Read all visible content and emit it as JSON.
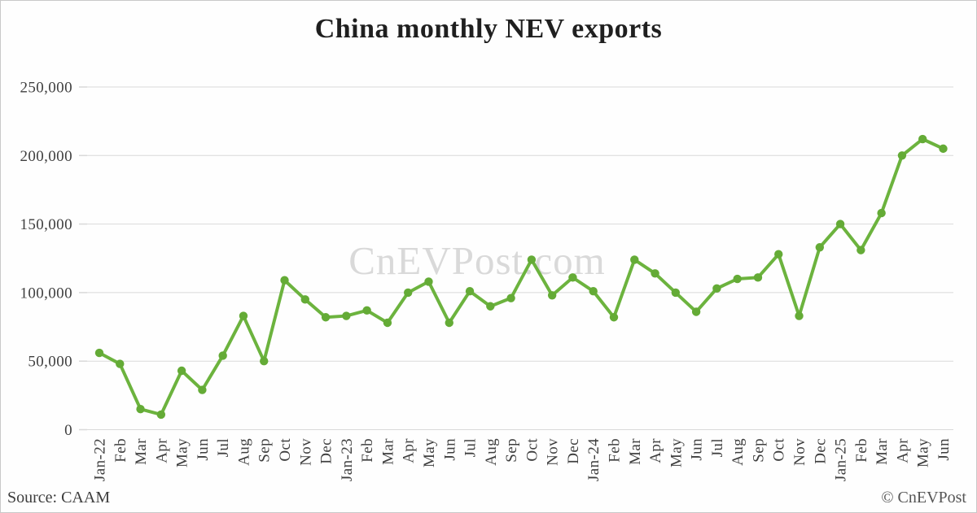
{
  "title": "China monthly NEV exports",
  "watermark": "CnEVPost.com",
  "footer": {
    "source": "Source: CAAM",
    "copyright": "© CnEVPost"
  },
  "colors": {
    "line": "#6cb33e",
    "marker": "#64ab36",
    "grid": "#d9d9d9",
    "axis_text": "#3f3f3f",
    "title_text": "#1f1f1f",
    "watermark_text": "#d9d9d9"
  },
  "chart_data": {
    "type": "line",
    "title": "China monthly NEV exports",
    "series_name": "China monthly NEV exports",
    "categories": [
      "Jan-22",
      "Feb",
      "Mar",
      "Apr",
      "May",
      "Jun",
      "Jul",
      "Aug",
      "Sep",
      "Oct",
      "Nov",
      "Dec",
      "Jan-23",
      "Feb",
      "Mar",
      "Apr",
      "May",
      "Jun",
      "Jul",
      "Aug",
      "Sep",
      "Oct",
      "Nov",
      "Dec",
      "Jan-24",
      "Feb",
      "Mar",
      "Apr",
      "May",
      "Jun",
      "Jul",
      "Aug",
      "Sep",
      "Oct",
      "Nov",
      "Dec",
      "Jan-25",
      "Feb",
      "Mar",
      "Apr",
      "May",
      "Jun"
    ],
    "values": [
      56000,
      48000,
      15000,
      11000,
      43000,
      29000,
      54000,
      83000,
      50000,
      109000,
      95000,
      82000,
      83000,
      87000,
      78000,
      100000,
      108000,
      78000,
      101000,
      90000,
      96000,
      124000,
      98000,
      111000,
      101000,
      82000,
      124000,
      114000,
      100000,
      86000,
      103000,
      110000,
      111000,
      128000,
      83000,
      133000,
      150000,
      131000,
      158000,
      200000,
      212000,
      205000
    ],
    "xlabel": "",
    "ylabel": "",
    "ylim": [
      0,
      250000
    ],
    "y_ticks": [
      0,
      50000,
      100000,
      150000,
      200000,
      250000
    ],
    "y_tick_labels": [
      "0",
      "50,000",
      "100,000",
      "150,000",
      "200,000",
      "250,000"
    ],
    "grid": "horizontal",
    "legend_position": "none",
    "marker": "circle"
  }
}
